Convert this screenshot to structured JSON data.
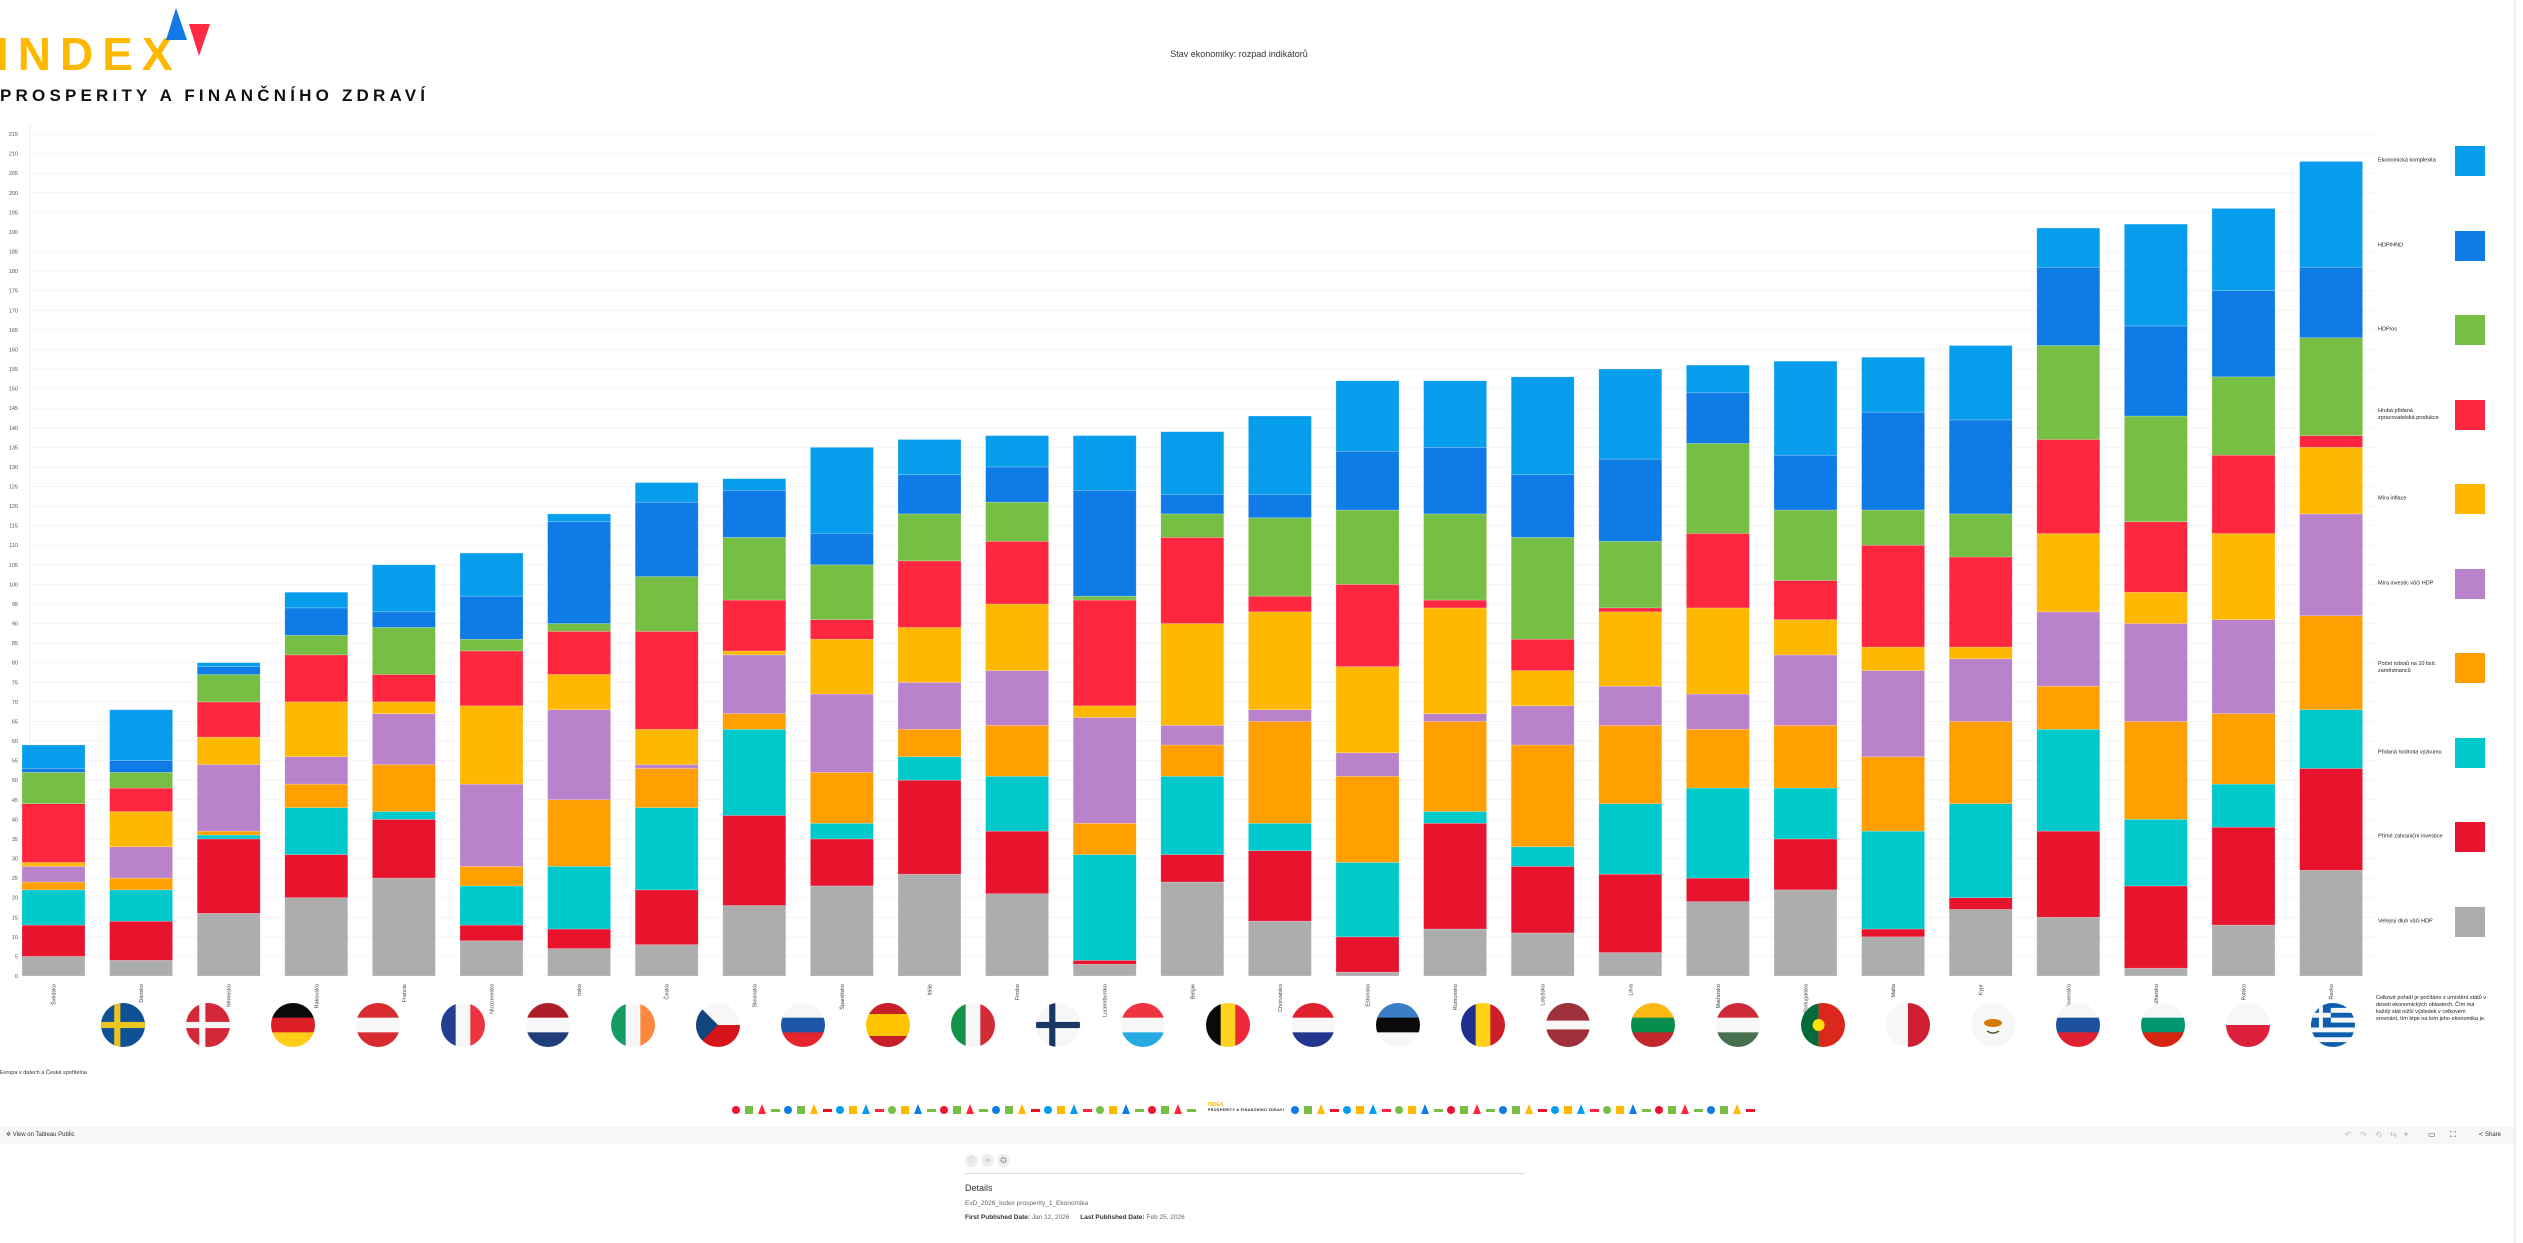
{
  "logo": {
    "word": "INDEX",
    "subtitle": "PROSPERITY A FINANČNÍHO ZDRAVÍ",
    "colors": {
      "word": "#ffb800",
      "triangle_up": "#1279e6",
      "triangle_down": "#ff2a44"
    }
  },
  "chart_data": {
    "type": "bar",
    "stacked": true,
    "title": "Stav ekonomiky: rozpad indikátorů",
    "xlabel": "",
    "ylabel": "",
    "ylim": [
      0,
      215
    ],
    "ytick_step": 5,
    "grid": true,
    "legend_placement": "right",
    "categories": [
      "Švédsko",
      "Dánsko",
      "Německo",
      "Rakousko",
      "Francie",
      "Nizozemsko",
      "Irsko",
      "Česko",
      "Slovinsko",
      "Španělsko",
      "Itálie",
      "Finsko",
      "Lucembursko",
      "Belgie",
      "Chorvatsko",
      "Estonsko",
      "Rumunsko",
      "Lotyšsko",
      "Litva",
      "Maďarsko",
      "Portugalsko",
      "Malta",
      "Kypr",
      "Slovensko",
      "Bulharsko",
      "Polsko",
      "Řecko"
    ],
    "series": [
      {
        "name": "Veřejný dluh vůči HDP",
        "color": "#adadad",
        "values": [
          5,
          4,
          16,
          20,
          25,
          9,
          7,
          8,
          18,
          23,
          26,
          21,
          3,
          24,
          14,
          1,
          12,
          11,
          6,
          19,
          22,
          10,
          17,
          15,
          2,
          13,
          27
        ]
      },
      {
        "name": "Přímé zahraniční investice",
        "color": "#e8132d",
        "values": [
          8,
          10,
          19,
          11,
          15,
          4,
          5,
          14,
          23,
          12,
          24,
          16,
          1,
          7,
          18,
          9,
          27,
          17,
          20,
          6,
          13,
          2,
          3,
          22,
          21,
          25,
          26
        ]
      },
      {
        "name": "Přidaná hodnota výzkumu",
        "color": "#00c9cb",
        "values": [
          9,
          8,
          1,
          12,
          2,
          10,
          16,
          21,
          22,
          4,
          6,
          14,
          27,
          20,
          7,
          19,
          3,
          5,
          18,
          23,
          13,
          25,
          24,
          26,
          17,
          11,
          15
        ]
      },
      {
        "name": "Počet robotů na 10 tisíc zaměstnanců",
        "color": "#ff9f00",
        "values": [
          2,
          3,
          1,
          6,
          12,
          5,
          17,
          10,
          4,
          13,
          7,
          13,
          8,
          8,
          26,
          22,
          23,
          26,
          20,
          15,
          16,
          19,
          21,
          11,
          25,
          18,
          24
        ]
      },
      {
        "name": "Míra investic vůči HDP",
        "color": "#bb82cc",
        "values": [
          4,
          8,
          17,
          7,
          13,
          21,
          23,
          1,
          15,
          20,
          12,
          14,
          27,
          5,
          3,
          6,
          2,
          10,
          10,
          9,
          18,
          22,
          16,
          19,
          25,
          24,
          26
        ]
      },
      {
        "name": "Míra inflace",
        "color": "#ffb800",
        "values": [
          1,
          9,
          7,
          14,
          3,
          20,
          9,
          9,
          1,
          14,
          14,
          17,
          3,
          26,
          25,
          22,
          27,
          9,
          19,
          22,
          9,
          6,
          3,
          20,
          8,
          22,
          17
        ]
      },
      {
        "name": "Hrubá přidaná zpracovatelská produkce",
        "color": "#ff263f",
        "values": [
          15,
          6,
          9,
          12,
          7,
          14,
          11,
          25,
          13,
          5,
          17,
          16,
          27,
          22,
          4,
          21,
          2,
          8,
          1,
          19,
          10,
          26,
          23,
          24,
          18,
          20,
          3
        ]
      },
      {
        "name": "HDP/os",
        "color": "#77bf44",
        "values": [
          8,
          4,
          7,
          5,
          12,
          3,
          2,
          14,
          16,
          14,
          12,
          10,
          1,
          6,
          20,
          19,
          22,
          26,
          17,
          23,
          18,
          9,
          11,
          24,
          27,
          20,
          25
        ]
      },
      {
        "name": "HDP/HND",
        "color": "#0f7be6",
        "values": [
          1,
          3,
          2,
          7,
          4,
          11,
          26,
          19,
          12,
          8,
          10,
          9,
          27,
          5,
          6,
          15,
          17,
          16,
          21,
          13,
          14,
          25,
          24,
          20,
          23,
          22,
          18
        ]
      },
      {
        "name": "Ekonomická komplexita",
        "color": "#079ded",
        "values": [
          6,
          13,
          1,
          4,
          12,
          11,
          2,
          5,
          3,
          22,
          9,
          8,
          14,
          16,
          20,
          18,
          17,
          25,
          23,
          7,
          24,
          14,
          19,
          10,
          26,
          21,
          27
        ]
      }
    ],
    "legend_note": "Celkové pořadí je počítáno z umístění států v deseti ekonomických oblastech. Čím má každý stát nižší výsledek v celkovém srovnání, tím lépe na tom jeho ekonomika je."
  },
  "flags": [
    "flag-se",
    "flag-dk",
    "flag-de",
    "flag-at",
    "flag-fr",
    "flag-nl",
    "flag-ie",
    "flag-cz",
    "flag-si",
    "flag-es",
    "flag-it",
    "flag-fi",
    "flag-lu",
    "flag-be",
    "flag-hr",
    "flag-ee",
    "flag-ro",
    "flag-lv",
    "flag-lt",
    "flag-hu",
    "flag-pt",
    "flag-mt",
    "flag-cy",
    "flag-sk",
    "flag-bg",
    "flag-pl",
    "flag-gr"
  ],
  "source": "Evropa v datech a Česká spořitelna",
  "footer_logo": {
    "word": "INDEX",
    "subtitle": "PROSPERITY A FINANČNÍHO ZDRAVÍ"
  },
  "toolbar": {
    "view_on": "View on Tableau Public",
    "share": "Share"
  },
  "details": {
    "title": "Details",
    "workbook": "EvD_2026_Index prosperity_1_Ekonomika",
    "first_label": "First Published Date:",
    "first_value": "Jan 12, 2026",
    "last_label": "Last Published Date:",
    "last_value": "Feb 25, 2026"
  }
}
